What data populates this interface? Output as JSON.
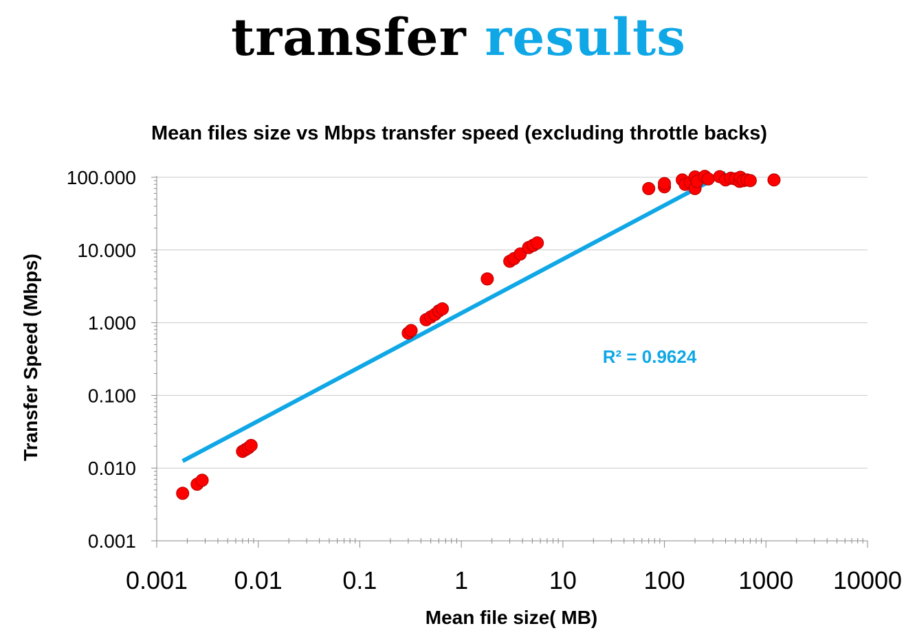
{
  "page_title": {
    "word1": "transfer",
    "word2": "results"
  },
  "colors": {
    "title_dark": "#000000",
    "title_accent": "#0fa7e6",
    "points": "#ff0000",
    "point_outline": "#b00000",
    "trendline": "#0fa7e6",
    "grid": "#c8c8c8"
  },
  "chart_data": {
    "type": "scatter",
    "title": "Mean files size vs Mbps transfer speed  (excluding throttle backs)",
    "xlabel": "Mean file size( MB)",
    "ylabel": "Transfer Speed (Mbps)",
    "x_scale": "log",
    "y_scale": "log",
    "xlim": [
      0.001,
      10000
    ],
    "ylim": [
      0.001,
      100
    ],
    "x_ticks": [
      "0.001",
      "0.01",
      "0.1",
      "1",
      "10",
      "100",
      "1000",
      "10000"
    ],
    "y_ticks": [
      "0.001",
      "0.010",
      "0.100",
      "1.000",
      "10.000",
      "100.000"
    ],
    "grid": "horizontal major",
    "legend": "none",
    "series": [
      {
        "points": [
          [
            0.0018,
            0.0045
          ],
          [
            0.0025,
            0.006
          ],
          [
            0.0028,
            0.0068
          ],
          [
            0.007,
            0.017
          ],
          [
            0.0075,
            0.018
          ],
          [
            0.008,
            0.019
          ],
          [
            0.0085,
            0.0205
          ],
          [
            0.3,
            0.72
          ],
          [
            0.32,
            0.78
          ],
          [
            0.45,
            1.1
          ],
          [
            0.5,
            1.2
          ],
          [
            0.55,
            1.3
          ],
          [
            0.6,
            1.45
          ],
          [
            0.65,
            1.55
          ],
          [
            1.8,
            4.0
          ],
          [
            3.0,
            7.0
          ],
          [
            3.3,
            7.6
          ],
          [
            3.8,
            8.8
          ],
          [
            4.6,
            10.8
          ],
          [
            5.1,
            11.6
          ],
          [
            5.6,
            12.5
          ],
          [
            70,
            70
          ],
          [
            100,
            74
          ],
          [
            100,
            82
          ],
          [
            150,
            92
          ],
          [
            160,
            80
          ],
          [
            180,
            85
          ],
          [
            200,
            70
          ],
          [
            200,
            101
          ],
          [
            210,
            88
          ],
          [
            250,
            103
          ],
          [
            270,
            95
          ],
          [
            350,
            102
          ],
          [
            400,
            92
          ],
          [
            450,
            97
          ],
          [
            500,
            95
          ],
          [
            550,
            88
          ],
          [
            560,
            100
          ],
          [
            600,
            90
          ],
          [
            650,
            92
          ],
          [
            700,
            90
          ],
          [
            1200,
            92
          ]
        ]
      }
    ],
    "trendline": {
      "x": [
        0.0018,
        400
      ],
      "y": [
        0.0125,
        115
      ]
    },
    "annotation": "R² = 0.9624"
  }
}
